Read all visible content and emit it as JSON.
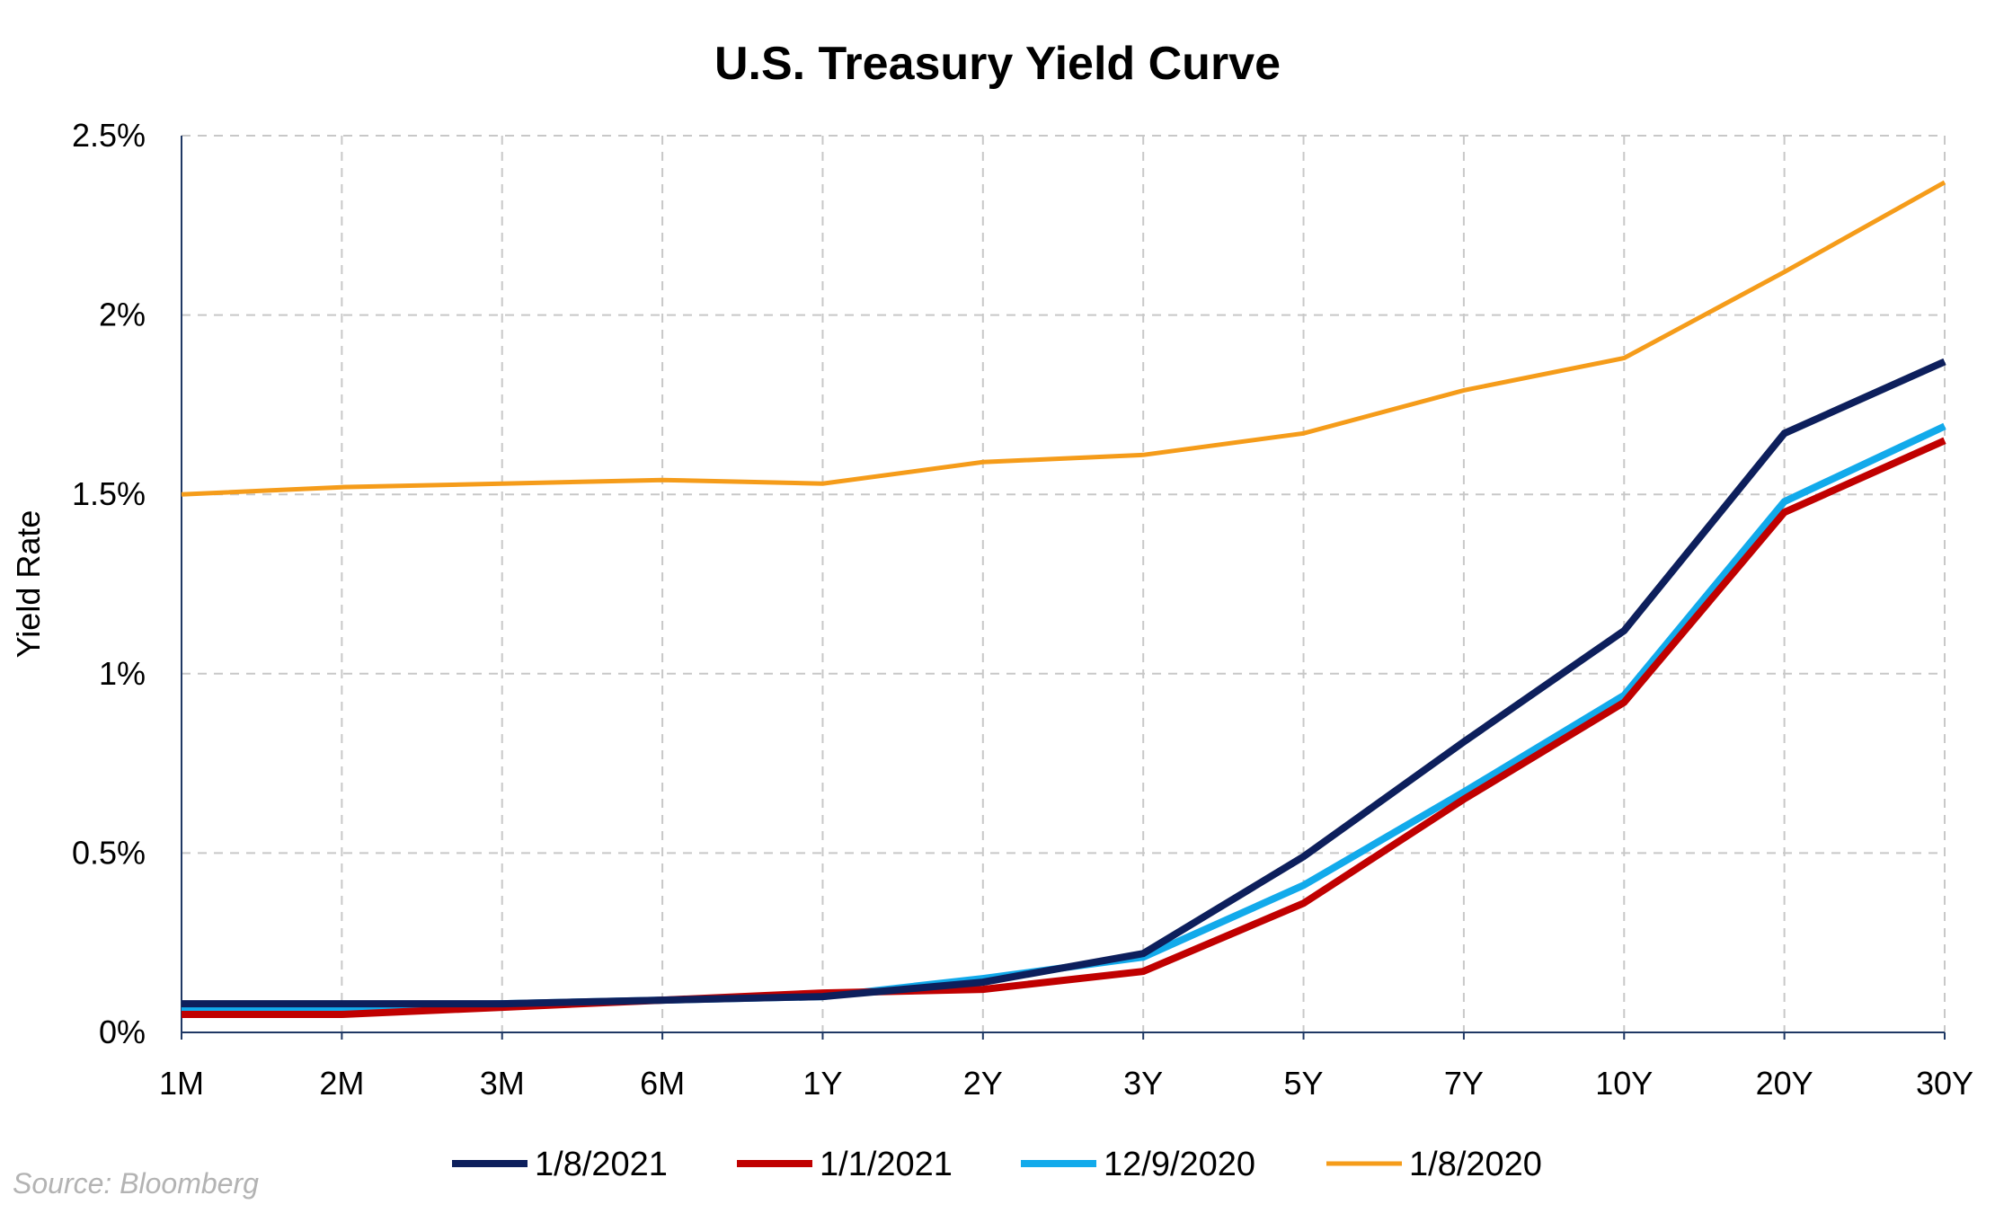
{
  "chart_data": {
    "type": "line",
    "title": "U.S. Treasury Yield Curve",
    "xlabel": "",
    "ylabel": "Yield Rate",
    "categories": [
      "1M",
      "2M",
      "3M",
      "6M",
      "1Y",
      "2Y",
      "3Y",
      "5Y",
      "7Y",
      "10Y",
      "20Y",
      "30Y"
    ],
    "ylim": [
      0,
      2.5
    ],
    "yticks": [
      0,
      0.5,
      1,
      1.5,
      2,
      2.5
    ],
    "ytick_labels": [
      "0%",
      "0.5%",
      "1%",
      "1.5%",
      "2%",
      "2.5%"
    ],
    "grid": true,
    "legend_position": "bottom",
    "series": [
      {
        "name": "1/8/2021",
        "color": "#0d1f5c",
        "values": [
          0.08,
          0.08,
          0.08,
          0.09,
          0.1,
          0.14,
          0.22,
          0.49,
          0.81,
          1.12,
          1.67,
          1.87
        ]
      },
      {
        "name": "1/1/2021",
        "color": "#c00000",
        "values": [
          0.05,
          0.05,
          0.07,
          0.09,
          0.11,
          0.12,
          0.17,
          0.36,
          0.65,
          0.92,
          1.45,
          1.65
        ]
      },
      {
        "name": "12/9/2020",
        "color": "#12aaeb",
        "values": [
          0.06,
          0.07,
          0.08,
          0.09,
          0.1,
          0.15,
          0.21,
          0.41,
          0.67,
          0.94,
          1.48,
          1.69
        ]
      },
      {
        "name": "1/8/2020",
        "color": "#f59c1a",
        "values": [
          1.5,
          1.52,
          1.53,
          1.54,
          1.53,
          1.59,
          1.61,
          1.67,
          1.79,
          1.88,
          2.12,
          2.37
        ]
      }
    ]
  },
  "source": "Source: Bloomberg"
}
